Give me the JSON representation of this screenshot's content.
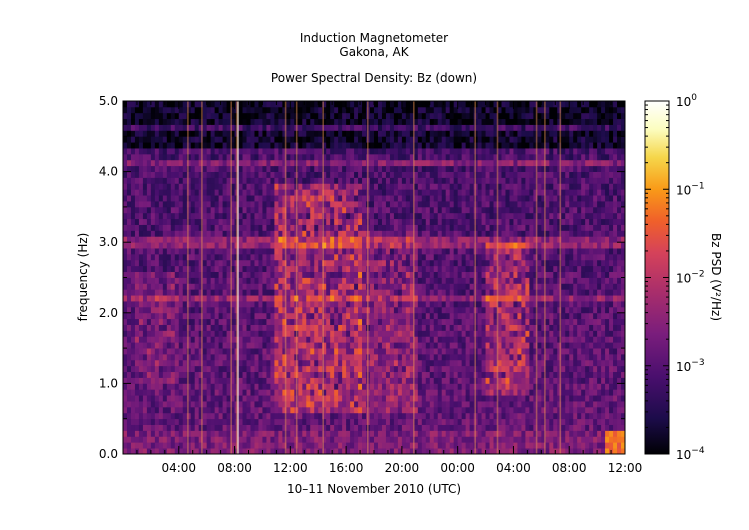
{
  "title": {
    "line1": "Induction Magnetometer",
    "line2": "Gakona, AK",
    "line3": "Power Spectral Density: Bz (down)"
  },
  "chart_data": {
    "type": "heatmap",
    "title": "Induction Magnetometer — Gakona, AK — Power Spectral Density: Bz (down)",
    "xlabel": "10–11 November 2010 (UTC)",
    "ylabel": "frequency (Hz)",
    "xlim_hours": [
      0,
      36
    ],
    "ylim": [
      0.0,
      5.0
    ],
    "x_ticks": [
      {
        "hour": 4,
        "label": "04:00"
      },
      {
        "hour": 8,
        "label": "08:00"
      },
      {
        "hour": 12,
        "label": "12:00"
      },
      {
        "hour": 16,
        "label": "16:00"
      },
      {
        "hour": 20,
        "label": "20:00"
      },
      {
        "hour": 24,
        "label": "00:00"
      },
      {
        "hour": 28,
        "label": "04:00"
      },
      {
        "hour": 32,
        "label": "08:00"
      },
      {
        "hour": 36,
        "label": "12:00"
      }
    ],
    "y_ticks": [
      {
        "value": 0.0,
        "label": "0.0"
      },
      {
        "value": 1.0,
        "label": "1.0"
      },
      {
        "value": 2.0,
        "label": "2.0"
      },
      {
        "value": 3.0,
        "label": "3.0"
      },
      {
        "value": 4.0,
        "label": "4.0"
      },
      {
        "value": 5.0,
        "label": "5.0"
      }
    ],
    "colorbar": {
      "label": "Bz PSD (V²/Hz)",
      "scale": "log",
      "range": [
        0.0001,
        1
      ],
      "ticks": [
        {
          "value": 1,
          "base": "10",
          "exp": "0"
        },
        {
          "value": 0.1,
          "base": "10",
          "exp": "−1"
        },
        {
          "value": 0.01,
          "base": "10",
          "exp": "−2"
        },
        {
          "value": 0.001,
          "base": "10",
          "exp": "−3"
        },
        {
          "value": 0.0001,
          "base": "10",
          "exp": "−4"
        }
      ],
      "colormap": [
        "#000004",
        "#1c0c4a",
        "#4a0f6e",
        "#7a1d7c",
        "#a92e6b",
        "#d5425a",
        "#f0602a",
        "#f99a18",
        "#f5d64a",
        "#fcfdbf",
        "#ffffff"
      ]
    },
    "grid": false
  }
}
